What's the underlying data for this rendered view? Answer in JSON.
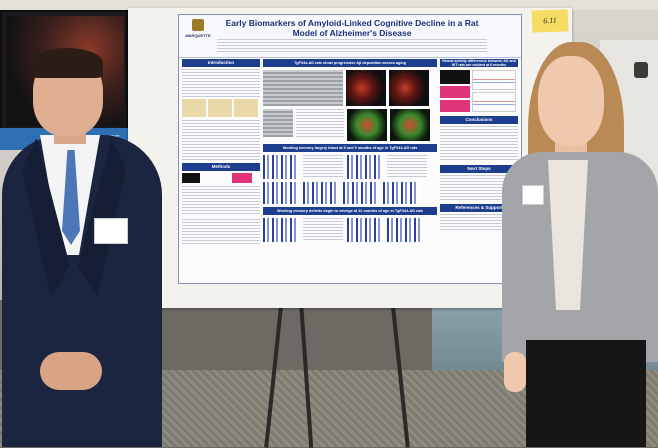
{
  "tv": {
    "strip_text": "5 | TE"
  },
  "sticky_note": "6.11",
  "poster": {
    "title": "Early Biomarkers of Amyloid-Linked Cognitive Decline in a Rat Model of Alzheimer's Disease",
    "logo_text": "MARQUETTE",
    "sections": {
      "introduction": "Introduction",
      "methods": "Methods",
      "tgf_heading": "TgF344-AD rats show progressive Aβ deposition across aging",
      "working_memory_1": "Working memory largely intact at 6 and 9 months of age in TgF344-AD rats",
      "working_memory_2": "Working memory deficits begin to emerge at 12 months of age in TgF344-AD rats",
      "neural_activity": "Neural activity differences between AD and WT rats are evident at 6 months",
      "conclusions": "Conclusions",
      "next_steps": "Next Steps",
      "references": "References & Support"
    }
  },
  "colors": {
    "poster_accent": "#1d3d8f",
    "tie": "#4d76b8",
    "suit": "#1c2540",
    "blazer": "#a3a5a9"
  }
}
